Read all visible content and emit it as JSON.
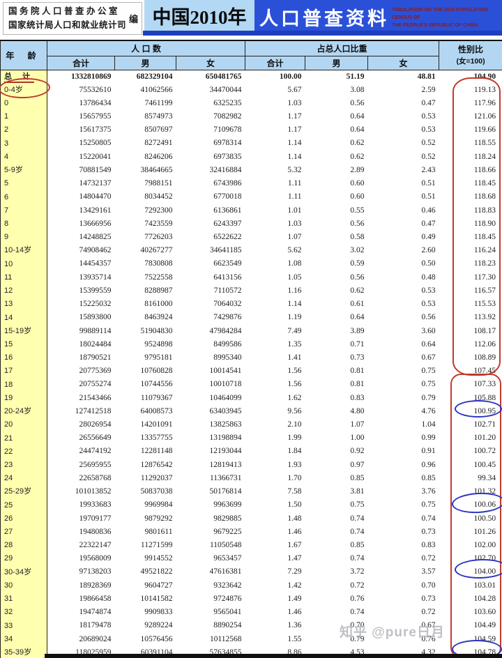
{
  "banner": {
    "publisher_line1": "国务院人口普查办公室",
    "publisher_line2": "国家统计局人口和就业统计司",
    "publisher_suffix": "编",
    "title_cn_left": "中国2010年",
    "title_cn_right": "人口普查资料",
    "title_en_line1": "TABULATION ON THE 2010 POPULATION CENSUS OF",
    "title_en_line2": "THE PEOPLE'S REPUBLIC OF CHINA"
  },
  "colors": {
    "banner_light_blue": "#b3d8f4",
    "banner_blue": "#2b50d8",
    "banner_strip_blue": "#1d3fbc",
    "header_blue": "#b3d7f3",
    "age_col_yellow": "#ffffb0",
    "annotation_red": "#c03a2b",
    "annotation_blue": "#2c35c0",
    "english_text_red": "#8b1a1a",
    "watermark_gray": "#b9bcc2"
  },
  "table": {
    "col_age": "年  龄",
    "group_population": "人  口  数",
    "group_share": "占总人口比重",
    "col_ratio_line1": "性别比",
    "col_ratio_line2": "(女=100)",
    "sub_total": "合计",
    "sub_male": "男",
    "sub_female": "女",
    "rows": [
      [
        "总 计",
        "1332810869",
        "682329104",
        "650481765",
        "100.00",
        "51.19",
        "48.81",
        "104.90"
      ],
      [
        "0-4岁",
        "75532610",
        "41062566",
        "34470044",
        "5.67",
        "3.08",
        "2.59",
        "119.13"
      ],
      [
        "0",
        "13786434",
        "7461199",
        "6325235",
        "1.03",
        "0.56",
        "0.47",
        "117.96"
      ],
      [
        "1",
        "15657955",
        "8574973",
        "7082982",
        "1.17",
        "0.64",
        "0.53",
        "121.06"
      ],
      [
        "2",
        "15617375",
        "8507697",
        "7109678",
        "1.17",
        "0.64",
        "0.53",
        "119.66"
      ],
      [
        "3",
        "15250805",
        "8272491",
        "6978314",
        "1.14",
        "0.62",
        "0.52",
        "118.55"
      ],
      [
        "4",
        "15220041",
        "8246206",
        "6973835",
        "1.14",
        "0.62",
        "0.52",
        "118.24"
      ],
      [
        "5-9岁",
        "70881549",
        "38464665",
        "32416884",
        "5.32",
        "2.89",
        "2.43",
        "118.66"
      ],
      [
        "5",
        "14732137",
        "7988151",
        "6743986",
        "1.11",
        "0.60",
        "0.51",
        "118.45"
      ],
      [
        "6",
        "14804470",
        "8034452",
        "6770018",
        "1.11",
        "0.60",
        "0.51",
        "118.68"
      ],
      [
        "7",
        "13429161",
        "7292300",
        "6136861",
        "1.01",
        "0.55",
        "0.46",
        "118.83"
      ],
      [
        "8",
        "13666956",
        "7423559",
        "6243397",
        "1.03",
        "0.56",
        "0.47",
        "118.90"
      ],
      [
        "9",
        "14248825",
        "7726203",
        "6522622",
        "1.07",
        "0.58",
        "0.49",
        "118.45"
      ],
      [
        "10-14岁",
        "74908462",
        "40267277",
        "34641185",
        "5.62",
        "3.02",
        "2.60",
        "116.24"
      ],
      [
        "10",
        "14454357",
        "7830808",
        "6623549",
        "1.08",
        "0.59",
        "0.50",
        "118.23"
      ],
      [
        "11",
        "13935714",
        "7522558",
        "6413156",
        "1.05",
        "0.56",
        "0.48",
        "117.30"
      ],
      [
        "12",
        "15399559",
        "8288987",
        "7110572",
        "1.16",
        "0.62",
        "0.53",
        "116.57"
      ],
      [
        "13",
        "15225032",
        "8161000",
        "7064032",
        "1.14",
        "0.61",
        "0.53",
        "115.53"
      ],
      [
        "14",
        "15893800",
        "8463924",
        "7429876",
        "1.19",
        "0.64",
        "0.56",
        "113.92"
      ],
      [
        "15-19岁",
        "99889114",
        "51904830",
        "47984284",
        "7.49",
        "3.89",
        "3.60",
        "108.17"
      ],
      [
        "15",
        "18024484",
        "9524898",
        "8499586",
        "1.35",
        "0.71",
        "0.64",
        "112.06"
      ],
      [
        "16",
        "18790521",
        "9795181",
        "8995340",
        "1.41",
        "0.73",
        "0.67",
        "108.89"
      ],
      [
        "17",
        "20775369",
        "10760828",
        "10014541",
        "1.56",
        "0.81",
        "0.75",
        "107.45"
      ],
      [
        "18",
        "20755274",
        "10744556",
        "10010718",
        "1.56",
        "0.81",
        "0.75",
        "107.33"
      ],
      [
        "19",
        "21543466",
        "11079367",
        "10464099",
        "1.62",
        "0.83",
        "0.79",
        "105.88"
      ],
      [
        "20-24岁",
        "127412518",
        "64008573",
        "63403945",
        "9.56",
        "4.80",
        "4.76",
        "100.95"
      ],
      [
        "20",
        "28026954",
        "14201091",
        "13825863",
        "2.10",
        "1.07",
        "1.04",
        "102.71"
      ],
      [
        "21",
        "26556649",
        "13357755",
        "13198894",
        "1.99",
        "1.00",
        "0.99",
        "101.20"
      ],
      [
        "22",
        "24474192",
        "12281148",
        "12193044",
        "1.84",
        "0.92",
        "0.91",
        "100.72"
      ],
      [
        "23",
        "25695955",
        "12876542",
        "12819413",
        "1.93",
        "0.97",
        "0.96",
        "100.45"
      ],
      [
        "24",
        "22658768",
        "11292037",
        "11366731",
        "1.70",
        "0.85",
        "0.85",
        "99.34"
      ],
      [
        "25-29岁",
        "101013852",
        "50837038",
        "50176814",
        "7.58",
        "3.81",
        "3.76",
        "101.32"
      ],
      [
        "25",
        "19933683",
        "9969984",
        "9963699",
        "1.50",
        "0.75",
        "0.75",
        "100.06"
      ],
      [
        "26",
        "19709177",
        "9879292",
        "9829885",
        "1.48",
        "0.74",
        "0.74",
        "100.50"
      ],
      [
        "27",
        "19480836",
        "9801611",
        "9679225",
        "1.46",
        "0.74",
        "0.73",
        "101.26"
      ],
      [
        "28",
        "22322147",
        "11271599",
        "11050548",
        "1.67",
        "0.85",
        "0.83",
        "102.00"
      ],
      [
        "29",
        "19568009",
        "9914552",
        "9653457",
        "1.47",
        "0.74",
        "0.72",
        "102.70"
      ],
      [
        "30-34岁",
        "97138203",
        "49521822",
        "47616381",
        "7.29",
        "3.72",
        "3.57",
        "104.00"
      ],
      [
        "30",
        "18928369",
        "9604727",
        "9323642",
        "1.42",
        "0.72",
        "0.70",
        "103.01"
      ],
      [
        "31",
        "19866458",
        "10141582",
        "9724876",
        "1.49",
        "0.76",
        "0.73",
        "104.28"
      ],
      [
        "32",
        "19474874",
        "9909833",
        "9565041",
        "1.46",
        "0.74",
        "0.72",
        "103.60"
      ],
      [
        "33",
        "18179478",
        "9289224",
        "8890254",
        "1.36",
        "0.70",
        "0.67",
        "104.49"
      ],
      [
        "34",
        "20689024",
        "10576456",
        "10112568",
        "1.55",
        "0.79",
        "0.76",
        "104.59"
      ],
      [
        "35-39岁",
        "118025959",
        "60391104",
        "57634855",
        "8.86",
        "4.53",
        "4.32",
        "104.78"
      ]
    ]
  },
  "watermark": "知乎 @pure日月"
}
